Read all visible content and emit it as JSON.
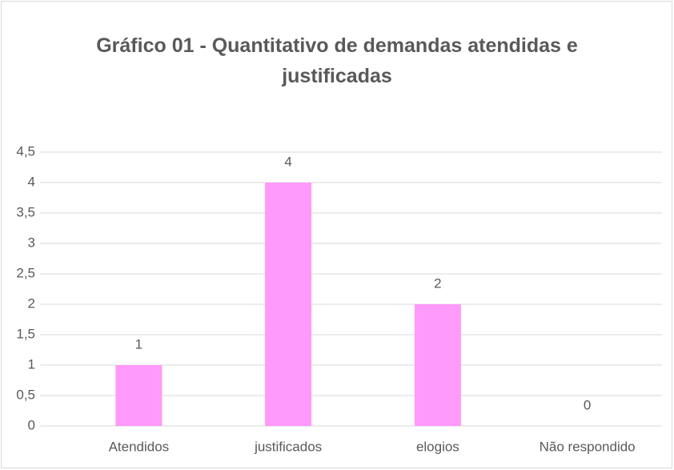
{
  "chart_data": {
    "type": "bar",
    "title": "Gráfico 01 - Quantitativo de demandas atendidas e justificadas",
    "categories": [
      "Atendidos",
      "justificados",
      "elogios",
      "Não respondido"
    ],
    "values": [
      1,
      4,
      2,
      0
    ],
    "color": "#ff99fa",
    "ylim": [
      0,
      4.5
    ],
    "yticks": [
      0,
      {
        "value": 0.5,
        "label": "0,5"
      },
      1,
      {
        "value": 1.5,
        "label": "1,5"
      },
      2,
      {
        "value": 2.5,
        "label": "2,5"
      },
      3,
      {
        "value": 3.5,
        "label": "3,5"
      },
      4,
      {
        "value": 4.5,
        "label": "4,5"
      }
    ],
    "grid": true
  }
}
